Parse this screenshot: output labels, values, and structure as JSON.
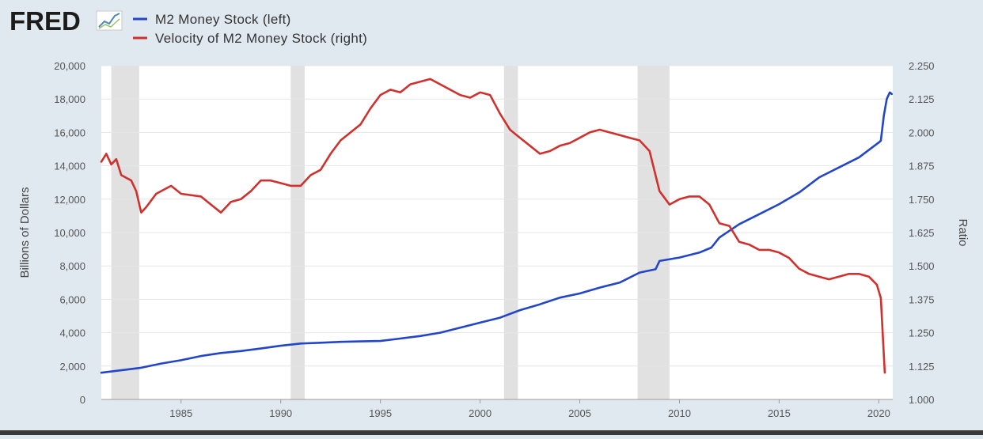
{
  "brand": {
    "name": "FRED",
    "logo_icon": "fred-trend-line-icon"
  },
  "colors": {
    "background": "#e1e9f0",
    "plot_background": "#ffffff",
    "recession_band": "#e1e1e1",
    "m2": "#2346c8",
    "velocity": "#d0312d",
    "grid": "#e6e6e6"
  },
  "chart_data": {
    "type": "line",
    "title": "",
    "xlabel": "",
    "ylabel_left": "Billions of Dollars",
    "ylabel_right": "Ratio",
    "xlim": [
      1981,
      2020.7
    ],
    "ylim_left": [
      0,
      20000
    ],
    "ylim_right": [
      1.0,
      2.25
    ],
    "x_ticks": [
      "1985",
      "1990",
      "1995",
      "2000",
      "2005",
      "2010",
      "2015",
      "2020"
    ],
    "x_tick_values": [
      1985,
      1990,
      1995,
      2000,
      2005,
      2010,
      2015,
      2020
    ],
    "y_left_ticks": [
      "0",
      "2,000",
      "4,000",
      "6,000",
      "8,000",
      "10,000",
      "12,000",
      "14,000",
      "16,000",
      "18,000",
      "20,000"
    ],
    "y_left_tick_values": [
      0,
      2000,
      4000,
      6000,
      8000,
      10000,
      12000,
      14000,
      16000,
      18000,
      20000
    ],
    "y_right_ticks": [
      "1.000",
      "1.125",
      "1.250",
      "1.375",
      "1.500",
      "1.625",
      "1.750",
      "1.875",
      "2.000",
      "2.125",
      "2.250"
    ],
    "y_right_tick_values": [
      1.0,
      1.125,
      1.25,
      1.375,
      1.5,
      1.625,
      1.75,
      1.875,
      2.0,
      2.125,
      2.25
    ],
    "grid": true,
    "legend_position": "top-left",
    "recessions": [
      [
        1981.5,
        1982.9
      ],
      [
        1990.5,
        1991.2
      ],
      [
        2001.2,
        2001.9
      ],
      [
        2007.9,
        2009.5
      ]
    ],
    "series": [
      {
        "name": "M2 Money Stock (left)",
        "axis": "left",
        "x": [
          1981,
          1982,
          1983,
          1984,
          1985,
          1986,
          1987,
          1988,
          1989,
          1990,
          1991,
          1992,
          1993,
          1994,
          1995,
          1996,
          1997,
          1998,
          1999,
          2000,
          2001,
          2002,
          2003,
          2004,
          2005,
          2006,
          2007,
          2008,
          2008.8,
          2009,
          2010,
          2011,
          2011.6,
          2012,
          2013,
          2014,
          2015,
          2016,
          2017,
          2018,
          2019,
          2020.0,
          2020.1,
          2020.25,
          2020.4,
          2020.55,
          2020.65
        ],
        "values": [
          1600,
          1750,
          1900,
          2150,
          2350,
          2600,
          2780,
          2900,
          3050,
          3220,
          3350,
          3400,
          3450,
          3480,
          3500,
          3650,
          3800,
          4000,
          4300,
          4600,
          4900,
          5350,
          5700,
          6100,
          6350,
          6700,
          7000,
          7600,
          7800,
          8300,
          8500,
          8800,
          9100,
          9700,
          10500,
          11100,
          11700,
          12400,
          13300,
          13900,
          14500,
          15400,
          15500,
          17000,
          18000,
          18400,
          18300
        ]
      },
      {
        "name": "Velocity of M2 Money Stock (right)",
        "axis": "right",
        "x": [
          1981,
          1981.25,
          1981.5,
          1981.75,
          1982,
          1982.5,
          1982.75,
          1983,
          1983.25,
          1983.75,
          1984.5,
          1985,
          1986,
          1986.5,
          1987,
          1987.5,
          1988,
          1988.5,
          1989,
          1989.5,
          1990,
          1990.5,
          1991,
          1991.5,
          1992,
          1992.5,
          1993,
          1993.5,
          1994,
          1994.5,
          1995,
          1995.5,
          1996,
          1996.5,
          1997,
          1997.5,
          1998,
          1998.5,
          1999,
          1999.5,
          2000,
          2000.5,
          2001,
          2001.5,
          2002,
          2002.5,
          2003,
          2003.5,
          2004,
          2004.5,
          2005,
          2005.5,
          2006,
          2006.5,
          2007,
          2007.5,
          2008,
          2008.5,
          2009,
          2009.5,
          2010,
          2010.5,
          2011,
          2011.5,
          2012,
          2012.5,
          2013,
          2013.5,
          2014,
          2014.5,
          2015,
          2015.5,
          2016,
          2016.5,
          2017,
          2017.5,
          2018,
          2018.5,
          2019,
          2019.5,
          2019.9,
          2020.1,
          2020.3
        ],
        "values": [
          1.89,
          1.92,
          1.88,
          1.9,
          1.84,
          1.82,
          1.78,
          1.7,
          1.72,
          1.77,
          1.8,
          1.77,
          1.76,
          1.73,
          1.7,
          1.74,
          1.75,
          1.78,
          1.82,
          1.82,
          1.81,
          1.8,
          1.8,
          1.84,
          1.86,
          1.92,
          1.97,
          2.0,
          2.03,
          2.09,
          2.14,
          2.16,
          2.15,
          2.18,
          2.19,
          2.2,
          2.18,
          2.16,
          2.14,
          2.13,
          2.15,
          2.14,
          2.07,
          2.01,
          1.98,
          1.95,
          1.92,
          1.93,
          1.95,
          1.96,
          1.98,
          2.0,
          2.01,
          2.0,
          1.99,
          1.98,
          1.97,
          1.93,
          1.78,
          1.73,
          1.75,
          1.76,
          1.76,
          1.73,
          1.66,
          1.65,
          1.59,
          1.58,
          1.56,
          1.56,
          1.55,
          1.53,
          1.49,
          1.47,
          1.46,
          1.45,
          1.46,
          1.47,
          1.47,
          1.46,
          1.43,
          1.38,
          1.1
        ]
      }
    ]
  }
}
